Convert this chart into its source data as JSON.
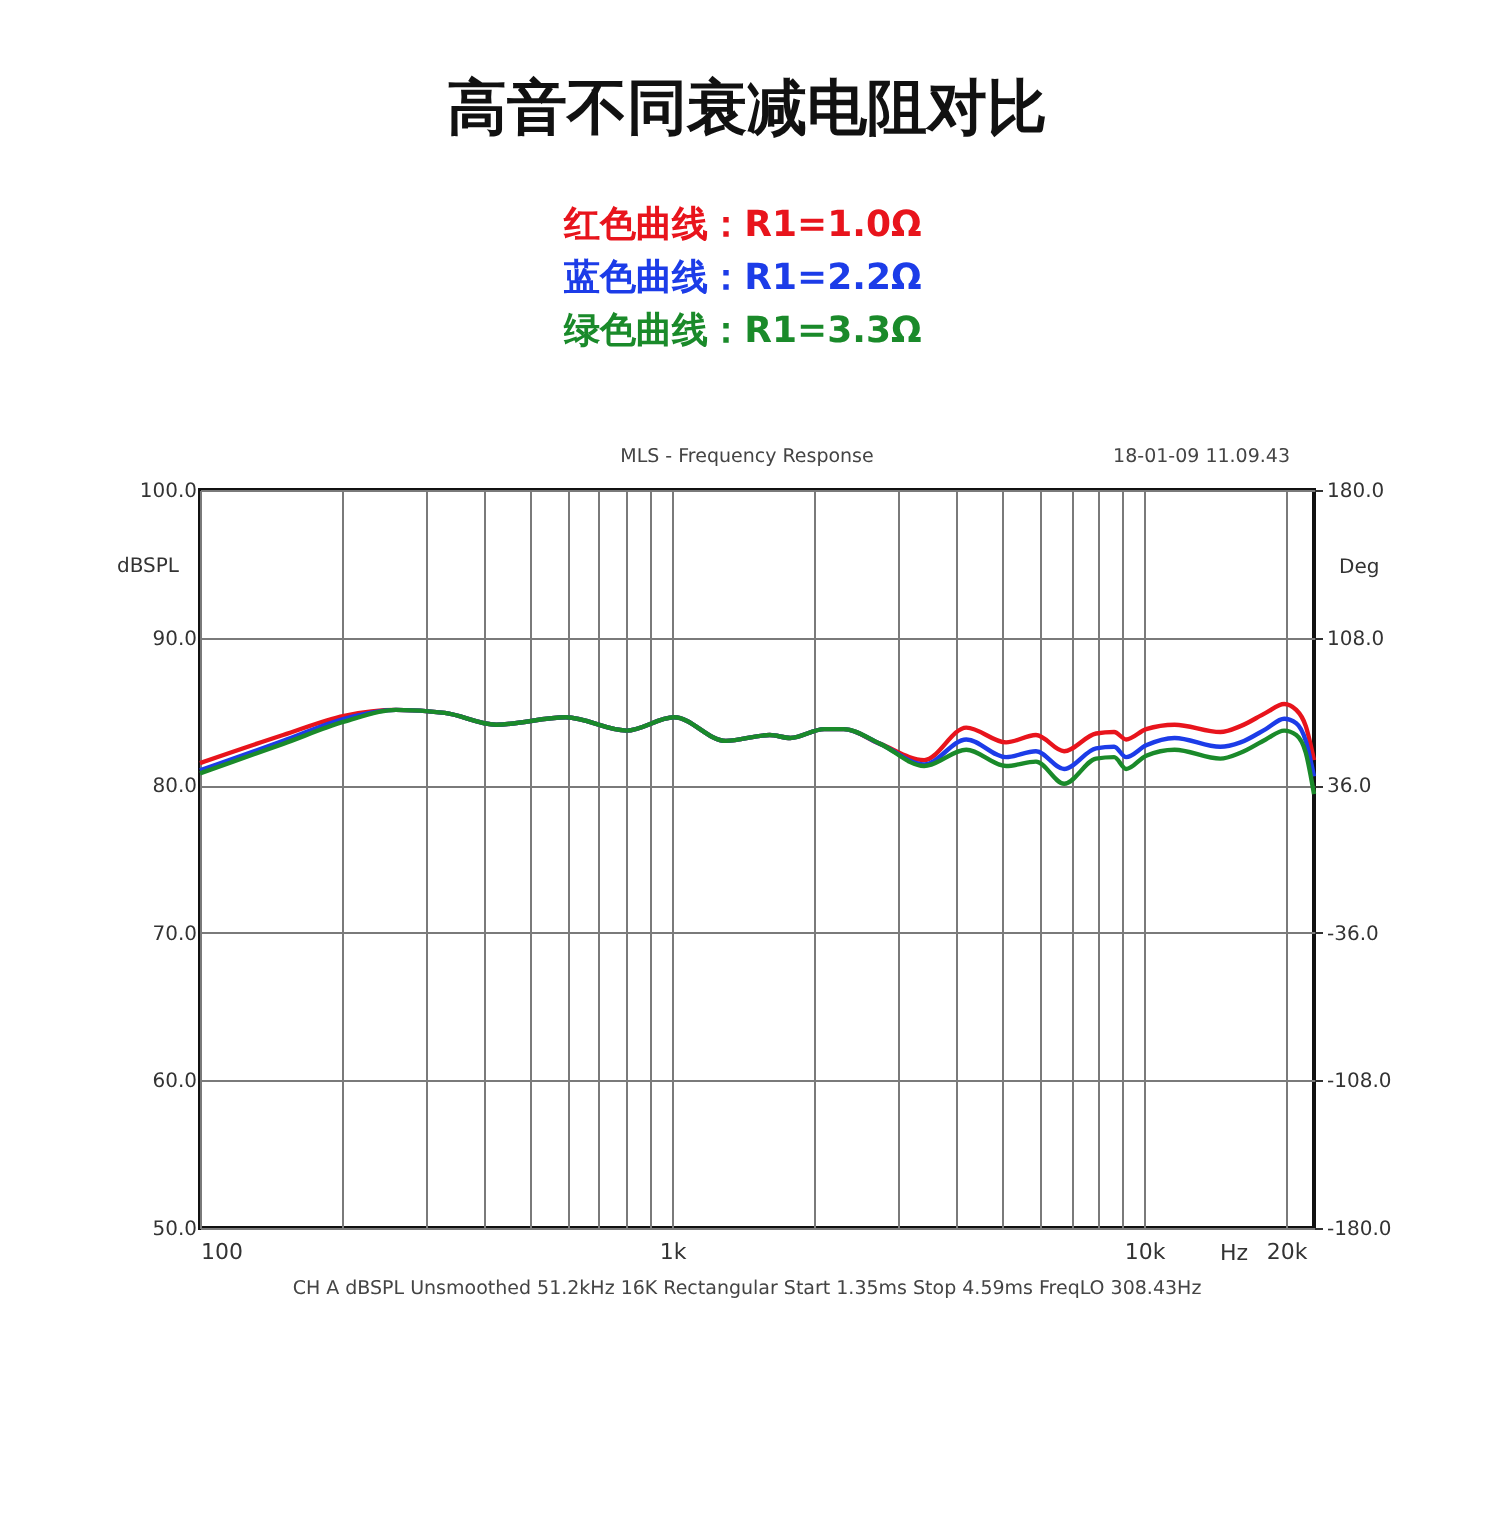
{
  "chart_data": {
    "type": "line",
    "title": "高音不同衰减电阻对比",
    "xlabel": "Hz",
    "ylabel": "dBSPL",
    "y2label": "Deg",
    "x": [
      100,
      150,
      202,
      260,
      330,
      424,
      596,
      800,
      1010,
      1300,
      1610,
      1780,
      2100,
      2310,
      2760,
      3420,
      4200,
      5100,
      5900,
      6770,
      7910,
      8640,
      9160,
      10100,
      11600,
      14500,
      16000,
      18100,
      19800,
      21000,
      22000,
      22900
    ],
    "series": [
      {
        "name": "红色曲线：R1=1.0Ω",
        "color": "#e8141c",
        "values": [
          81.5,
          83.4,
          84.7,
          85.1,
          84.9,
          84.1,
          84.6,
          83.7,
          84.6,
          83.0,
          83.4,
          83.2,
          83.8,
          83.8,
          82.8,
          81.7,
          83.9,
          82.9,
          83.4,
          82.3,
          83.5,
          83.6,
          83.1,
          83.8,
          84.1,
          83.6,
          84.0,
          84.9,
          85.5,
          85.1,
          84.0,
          81.7
        ]
      },
      {
        "name": "蓝色曲线：R1=2.2Ω",
        "color": "#1c3ce8",
        "values": [
          81.0,
          83.0,
          84.5,
          85.1,
          84.9,
          84.1,
          84.6,
          83.7,
          84.6,
          83.0,
          83.4,
          83.2,
          83.8,
          83.8,
          82.8,
          81.4,
          83.1,
          81.9,
          82.3,
          81.1,
          82.5,
          82.6,
          81.9,
          82.7,
          83.2,
          82.6,
          82.9,
          83.8,
          84.5,
          84.2,
          83.0,
          80.6
        ]
      },
      {
        "name": "绿色曲线：R1=3.3Ω",
        "color": "#1a8a2a",
        "values": [
          80.8,
          82.8,
          84.3,
          85.1,
          84.9,
          84.1,
          84.6,
          83.7,
          84.6,
          83.0,
          83.4,
          83.2,
          83.8,
          83.8,
          82.8,
          81.3,
          82.4,
          81.3,
          81.6,
          80.1,
          81.8,
          81.9,
          81.1,
          82.0,
          82.4,
          81.8,
          82.2,
          83.1,
          83.7,
          83.4,
          82.2,
          79.4
        ]
      }
    ],
    "log": "x",
    "xlim": [
      100,
      22900
    ],
    "xticks": [
      {
        "value": 100,
        "label": "100"
      },
      {
        "value": 200,
        "label": null
      },
      {
        "value": 300,
        "label": null
      },
      {
        "value": 400,
        "label": null
      },
      {
        "value": 500,
        "label": null
      },
      {
        "value": 600,
        "label": null
      },
      {
        "value": 700,
        "label": null
      },
      {
        "value": 800,
        "label": null
      },
      {
        "value": 900,
        "label": null
      },
      {
        "value": 1000,
        "label": "1k"
      },
      {
        "value": 2000,
        "label": null
      },
      {
        "value": 3000,
        "label": null
      },
      {
        "value": 4000,
        "label": null
      },
      {
        "value": 5000,
        "label": null
      },
      {
        "value": 6000,
        "label": null
      },
      {
        "value": 7000,
        "label": null
      },
      {
        "value": 8000,
        "label": null
      },
      {
        "value": 9000,
        "label": null
      },
      {
        "value": 10000,
        "label": "10k"
      },
      {
        "value": 20000,
        "label": "20k"
      }
    ],
    "ylim": [
      50,
      100
    ],
    "yticks": [
      {
        "value": 50,
        "label": "50.0"
      },
      {
        "value": 60,
        "label": "60.0"
      },
      {
        "value": 70,
        "label": "70.0"
      },
      {
        "value": 80,
        "label": "80.0"
      },
      {
        "value": 90,
        "label": "90.0"
      },
      {
        "value": 100,
        "label": "100.0"
      }
    ],
    "y2lim": [
      -180,
      180
    ],
    "y2ticks": [
      {
        "value": -180,
        "label": "-180.0"
      },
      {
        "value": -108,
        "label": "-108.0"
      },
      {
        "value": -36,
        "label": "-36.0"
      },
      {
        "value": 36,
        "label": "36.0"
      },
      {
        "value": 108,
        "label": "108.0"
      },
      {
        "value": 180,
        "label": "180.0"
      }
    ],
    "grid": true,
    "legend": "top",
    "marker": "none",
    "line_style": "solid",
    "annotations": [
      "MLS - Frequency Response",
      "18-01-09 11.09.43",
      "CH A   dBSPL   Unsmoothed   51.2kHz   16K   Rectangular   Start 1.35ms   Stop 4.59ms   FreqLO 308.43Hz"
    ]
  }
}
